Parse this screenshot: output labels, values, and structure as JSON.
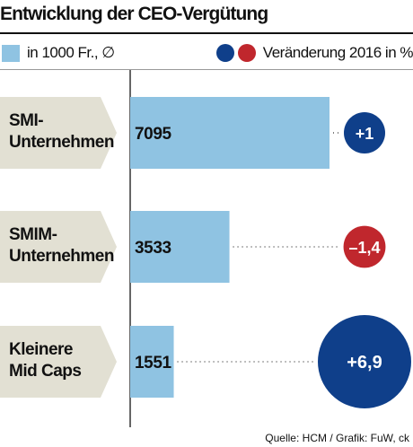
{
  "title": "Entwicklung der CEO-Vergütung",
  "legend": {
    "bar_label": "in 1000 Fr., ∅",
    "change_label": "Veränderung 2016 in %"
  },
  "source": "Quelle: HCM / Grafik: FuW, ck",
  "colors": {
    "bar": "#8fc3e2",
    "positive": "#0f3f8a",
    "negative": "#c0272d",
    "label_box": "#e2e0d3"
  },
  "chart_data": {
    "type": "bar",
    "orientation": "horizontal",
    "categories": [
      [
        "SMI-",
        "Unternehmen"
      ],
      [
        "SMIM-",
        "Unternehmen"
      ],
      [
        "Kleinere",
        "Mid Caps"
      ]
    ],
    "values": [
      7095,
      3533,
      1551
    ],
    "value_labels": [
      "7095",
      "3533",
      "1551"
    ],
    "changes": [
      1,
      -1.4,
      6.9
    ],
    "change_labels": [
      "+1",
      "–1,4",
      "+6,9"
    ]
  }
}
